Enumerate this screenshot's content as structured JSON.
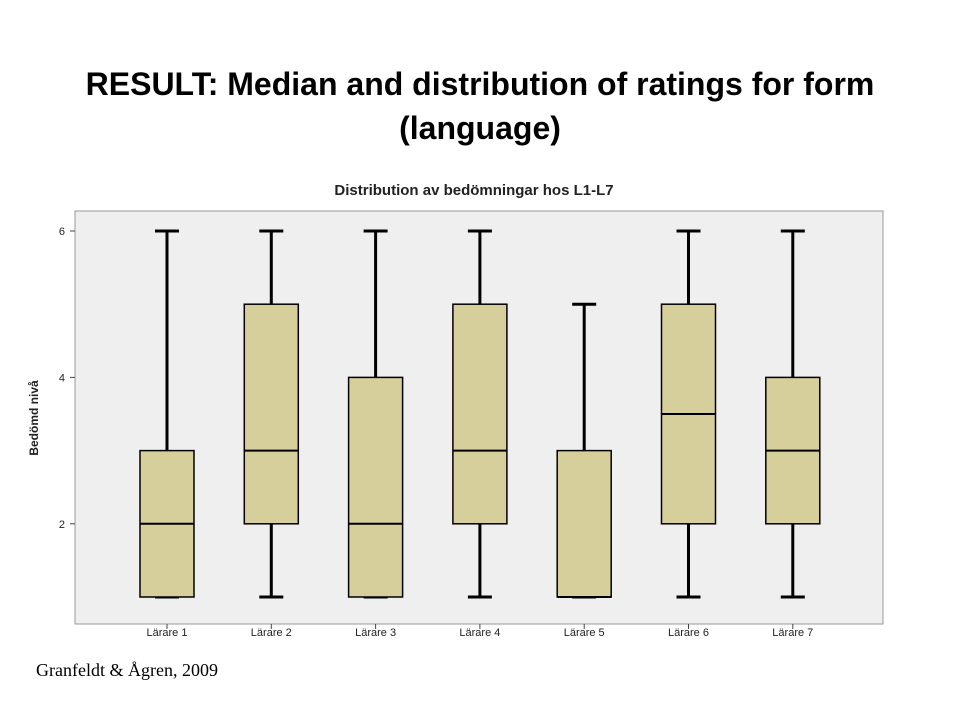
{
  "slide": {
    "title": "RESULT:  Median and distribution of ratings for form (language)",
    "citation": "Granfeldt & Ågren, 2009"
  },
  "colors": {
    "box_fill": "#d6cf9c",
    "plot_background": "#efefef",
    "stroke": "#000000"
  },
  "chart_data": {
    "type": "boxplot",
    "title": "Distribution av bedömningar hos L1-L7",
    "xlabel": "",
    "ylabel": "Bedömd nivå",
    "ylim": [
      0.6,
      6.25
    ],
    "yticks": [
      2,
      4,
      6
    ],
    "grid": false,
    "categories": [
      "Lärare 1",
      "Lärare 2",
      "Lärare 3",
      "Lärare 4",
      "Lärare 5",
      "Lärare 6",
      "Lärare 7"
    ],
    "boxes": [
      {
        "min": 1,
        "q1": 1,
        "median": 2,
        "q3": 3,
        "max": 6
      },
      {
        "min": 1,
        "q1": 2,
        "median": 3,
        "q3": 5,
        "max": 6
      },
      {
        "min": 1,
        "q1": 1,
        "median": 2,
        "q3": 4,
        "max": 6
      },
      {
        "min": 1,
        "q1": 2,
        "median": 3,
        "q3": 5,
        "max": 6
      },
      {
        "min": 1,
        "q1": 1,
        "median": 1,
        "q3": 3,
        "max": 5
      },
      {
        "min": 1,
        "q1": 2,
        "median": 3.5,
        "q3": 5,
        "max": 6
      },
      {
        "min": 1,
        "q1": 2,
        "median": 3,
        "q3": 4,
        "max": 6
      }
    ]
  }
}
